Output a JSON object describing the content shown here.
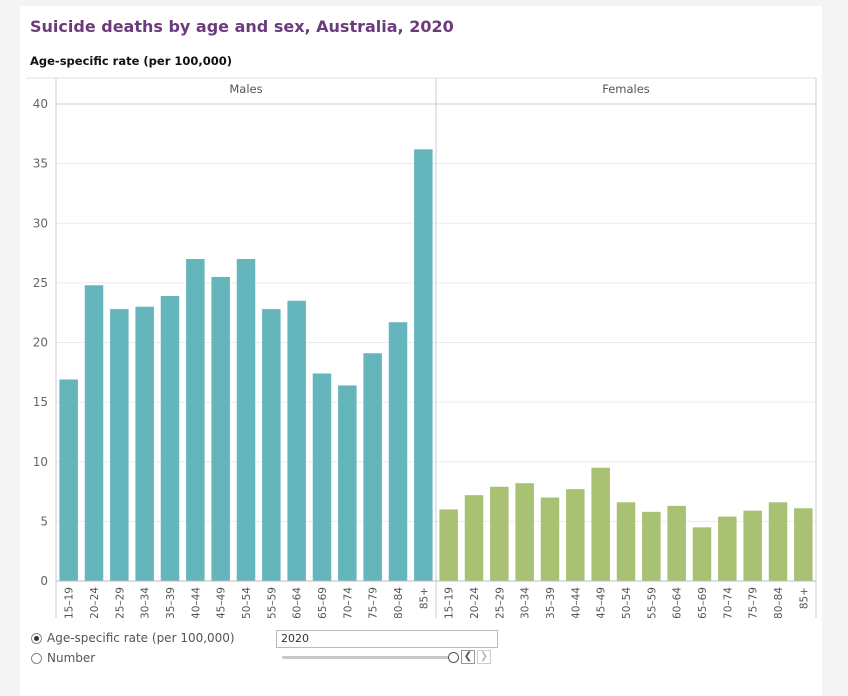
{
  "title": "Suicide deaths by age and sex, Australia, 2020",
  "subtitle": "Age-specific rate (per 100,000)",
  "chart_data": {
    "type": "bar",
    "ylim": [
      0,
      40
    ],
    "yticks": [
      0,
      5,
      10,
      15,
      20,
      25,
      30,
      35,
      40
    ],
    "grid": true,
    "categories": [
      "15–19",
      "20–24",
      "25–29",
      "30–34",
      "35–39",
      "40–44",
      "45–49",
      "50–54",
      "55–59",
      "60–64",
      "65–69",
      "70–74",
      "75–79",
      "80–84",
      "85+"
    ],
    "panels": [
      {
        "name": "Males",
        "color": "#65b5bd",
        "values": [
          16.9,
          24.8,
          22.8,
          23.0,
          23.9,
          27.0,
          25.5,
          27.0,
          22.8,
          23.5,
          17.4,
          16.4,
          19.1,
          21.7,
          36.2
        ]
      },
      {
        "name": "Females",
        "color": "#a9c173",
        "values": [
          6.0,
          7.2,
          7.9,
          8.2,
          7.0,
          7.7,
          9.5,
          6.6,
          5.8,
          6.3,
          4.5,
          5.4,
          5.9,
          6.6,
          6.1
        ]
      }
    ]
  },
  "controls": {
    "options": [
      "Age-specific rate (per 100,000)",
      "Number"
    ],
    "selected": "Age-specific rate (per 100,000)",
    "year": "2020",
    "prev_icon": "chevron-left-icon",
    "next_icon": "chevron-right-icon"
  }
}
